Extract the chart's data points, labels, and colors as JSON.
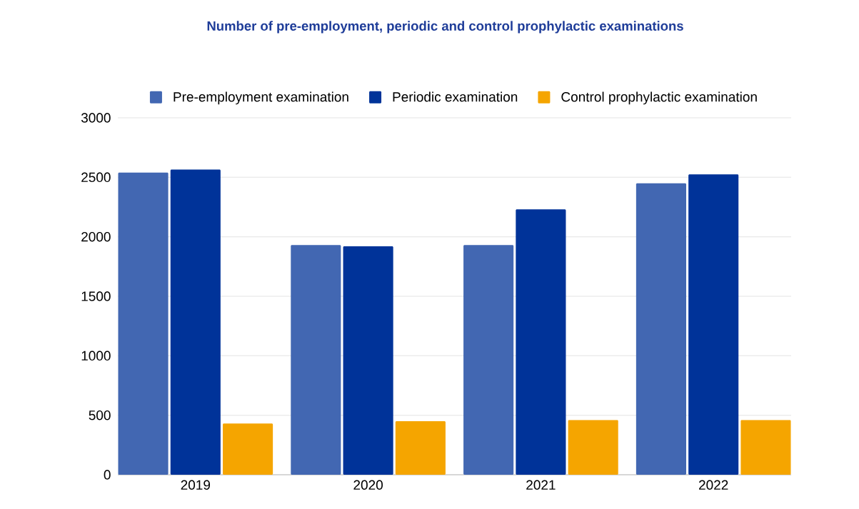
{
  "chart_data": {
    "type": "bar",
    "title": "Number of pre-employment, periodic and control prophylactic examinations",
    "categories": [
      "2019",
      "2020",
      "2021",
      "2022"
    ],
    "series": [
      {
        "name": "Pre-employment examination",
        "color": "#4267b2",
        "values": [
          2540,
          1930,
          1930,
          2450
        ]
      },
      {
        "name": "Periodic examination",
        "color": "#003399",
        "values": [
          2565,
          1920,
          2230,
          2525
        ]
      },
      {
        "name": "Control prophylactic examination",
        "color": "#f5a500",
        "values": [
          430,
          450,
          460,
          460
        ]
      }
    ],
    "ylim": [
      0,
      3000
    ],
    "yticks": [
      0,
      500,
      1000,
      1500,
      2000,
      2500,
      3000
    ],
    "grid": "y",
    "legend": "top"
  }
}
